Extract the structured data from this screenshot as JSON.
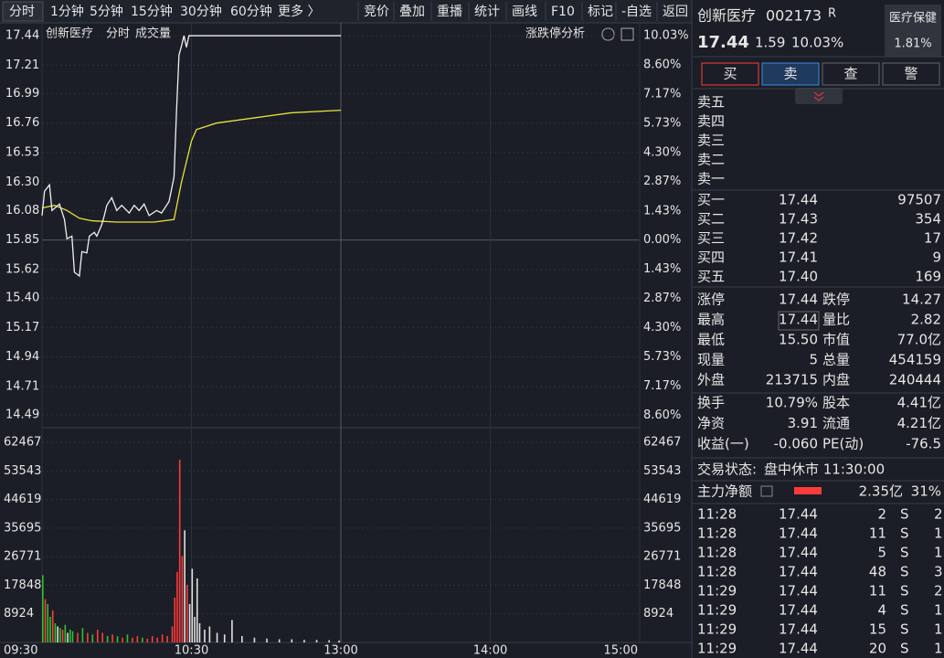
{
  "toolbar": {
    "period_tabs": [
      "分时",
      "1分钟",
      "5分钟",
      "15分钟",
      "30分钟",
      "60分钟",
      "更多 〉"
    ],
    "tools": [
      "竞价",
      "叠加",
      "重播",
      "统计",
      "画线",
      "F10",
      "标记",
      "-自选",
      "返回"
    ]
  },
  "chart_data": {
    "type": "intraday",
    "stock_label": "创新医疗",
    "mode_label": "分时",
    "volume_label": "成交量",
    "analysis_label": "涨跌停分析",
    "xlim": [
      0,
      240
    ],
    "xticks": [
      {
        "value": 0,
        "label": "09:30"
      },
      {
        "value": 60,
        "label": "10:30"
      },
      {
        "value": 120,
        "label": "13:00"
      },
      {
        "value": 180,
        "label": "14:00"
      },
      {
        "value": 240,
        "label": "15:00"
      }
    ],
    "ylim": [
      14.39,
      17.54
    ],
    "yticks": [
      17.44,
      17.21,
      16.99,
      16.76,
      16.53,
      {
        "value": 16.3,
        "label": "16.30"
      },
      16.08,
      15.85,
      15.62,
      {
        "value": 15.4,
        "label": "15.40"
      },
      15.17,
      14.94,
      14.71,
      14.49
    ],
    "y2lim": [
      -9.21,
      10.66
    ],
    "y2ticks": [
      {
        "value": 10.03,
        "label": "10.03%"
      },
      {
        "value": 8.6,
        "label": "8.60%"
      },
      {
        "value": 7.17,
        "label": "7.17%"
      },
      {
        "value": 5.73,
        "label": "5.73%"
      },
      {
        "value": 4.3,
        "label": "4.30%"
      },
      {
        "value": 2.87,
        "label": "2.87%"
      },
      {
        "value": 1.43,
        "label": "1.43%"
      },
      {
        "value": 0,
        "label": "0.00%"
      },
      {
        "value": -1.43,
        "label": "1.43%"
      },
      {
        "value": -2.87,
        "label": "2.87%"
      },
      {
        "value": -4.3,
        "label": "4.30%"
      },
      {
        "value": -5.73,
        "label": "5.73%"
      },
      {
        "value": -7.17,
        "label": "7.17%"
      },
      {
        "value": -8.6,
        "label": "8.60%"
      }
    ],
    "price": {
      "color": "#f0f0f0",
      "x": [
        0,
        1,
        3,
        4,
        7,
        9,
        10,
        12,
        13,
        15,
        16,
        18,
        19,
        21,
        22,
        24,
        25,
        26,
        28,
        30,
        32,
        35,
        37,
        39,
        41,
        43,
        46,
        48,
        50,
        51,
        53,
        54,
        55,
        56,
        57,
        58,
        59,
        120
      ],
      "values": [
        16.04,
        16.23,
        16.28,
        16.08,
        16.13,
        16.01,
        15.86,
        15.88,
        15.6,
        15.57,
        15.76,
        15.75,
        15.88,
        15.91,
        15.88,
        15.97,
        16.04,
        16.12,
        16.18,
        16.08,
        16.12,
        16.06,
        16.12,
        16.08,
        16.13,
        16.04,
        16.08,
        16.06,
        16.12,
        16.15,
        16.34,
        16.85,
        17.29,
        17.36,
        17.44,
        17.35,
        17.44,
        17.44
      ]
    },
    "average": {
      "color": "#e8e23a",
      "x": [
        0,
        5,
        10,
        15,
        20,
        30,
        45,
        53,
        56,
        60,
        62,
        70,
        85,
        100,
        120
      ],
      "values": [
        16.1,
        16.12,
        16.08,
        16.02,
        16.0,
        15.99,
        15.99,
        16.01,
        16.3,
        16.62,
        16.71,
        16.76,
        16.8,
        16.84,
        16.86
      ]
    },
    "volume": {
      "ylim": [
        0,
        66450
      ],
      "yticks": [
        62467,
        53543,
        44619,
        35695,
        26771,
        17848,
        8924
      ],
      "x": [
        0,
        1,
        2,
        3,
        4,
        5,
        6,
        7,
        8,
        9,
        10,
        11,
        12,
        14,
        16,
        18,
        20,
        22,
        24,
        26,
        28,
        30,
        32,
        34,
        36,
        38,
        40,
        42,
        44,
        46,
        48,
        50,
        52,
        53,
        54,
        55,
        56,
        57,
        58,
        59,
        60,
        61,
        62,
        63,
        65,
        67,
        70,
        73,
        76,
        80,
        85,
        90,
        95,
        100,
        105,
        110,
        115,
        119
      ],
      "values": [
        21000,
        13500,
        12000,
        8000,
        10000,
        6000,
        5000,
        4500,
        4000,
        5500,
        3000,
        4000,
        3500,
        3000,
        4500,
        3000,
        2500,
        4000,
        3000,
        2000,
        2500,
        2000,
        1500,
        2500,
        1500,
        2000,
        1500,
        1200,
        2000,
        1500,
        2500,
        2000,
        5000,
        14000,
        22000,
        57000,
        27000,
        35000,
        18000,
        12000,
        23000,
        8000,
        20000,
        6000,
        4000,
        5000,
        3000,
        2500,
        7000,
        2000,
        1500,
        1200,
        1000,
        1000,
        800,
        800,
        700,
        600
      ],
      "colors": [
        "#2fc12f",
        "#ff3b3b",
        "#2fc12f",
        "#2fc12f",
        "#ff3b3b",
        "#2fc12f",
        "#e0e0e0",
        "#2fc12f",
        "#ff3b3b",
        "#2fc12f",
        "#e0e0e0",
        "#2fc12f",
        "#2fc12f",
        "#ff3b3b",
        "#2fc12f",
        "#ff3b3b",
        "#2fc12f",
        "#ff3b3b",
        "#ff3b3b",
        "#2fc12f",
        "#ff3b3b",
        "#2fc12f",
        "#ff3b3b",
        "#2fc12f",
        "#ff3b3b",
        "#ff3b3b",
        "#2fc12f",
        "#ff3b3b",
        "#ff3b3b",
        "#ff3b3b",
        "#ff3b3b",
        "#ff3b3b",
        "#ff3b3b",
        "#ff3b3b",
        "#ff3b3b",
        "#ff3b3b",
        "#ff3b3b",
        "#e0e0e0",
        "#ff3b3b",
        "#e0e0e0",
        "#e0e0e0",
        "#e0e0e0",
        "#e0e0e0",
        "#e0e0e0",
        "#e0e0e0",
        "#e0e0e0",
        "#e0e0e0",
        "#e0e0e0",
        "#e0e0e0",
        "#e0e0e0",
        "#e0e0e0",
        "#e0e0e0",
        "#e0e0e0",
        "#e0e0e0",
        "#e0e0e0",
        "#e0e0e0",
        "#e0e0e0",
        "#e0e0e0"
      ]
    }
  },
  "quote": {
    "name": "创新医疗",
    "code": "002173",
    "flag": "R",
    "price": "17.44",
    "change": "1.59",
    "change_pct": "10.03%",
    "sector": "医疗保健",
    "sector_pct": "1.81%"
  },
  "buttons": [
    "买",
    "卖",
    "查",
    "警"
  ],
  "order_book": {
    "sell": [
      "卖五",
      "卖四",
      "卖三",
      "卖二",
      "卖一"
    ],
    "buy": [
      {
        "label": "买一",
        "price": "17.44",
        "volume": "97507"
      },
      {
        "label": "买二",
        "price": "17.43",
        "volume": "354"
      },
      {
        "label": "买三",
        "price": "17.42",
        "volume": "17"
      },
      {
        "label": "买四",
        "price": "17.41",
        "volume": "9"
      },
      {
        "label": "买五",
        "price": "17.40",
        "volume": "169"
      }
    ]
  },
  "stats": [
    [
      {
        "label": "涨停",
        "value": "17.44",
        "color": "red"
      },
      {
        "label": "跌停",
        "value": "14.27",
        "color": "green"
      }
    ],
    [
      {
        "label": "最高",
        "value": "17.44",
        "color": "red"
      },
      {
        "label": "量比",
        "value": "2.82",
        "color": "red"
      }
    ],
    [
      {
        "label": "最低",
        "value": "15.50",
        "color": "green"
      },
      {
        "label": "市值",
        "value": "77.0亿",
        "color": "white"
      }
    ],
    [
      {
        "label": "现量",
        "value": "5",
        "color": "green"
      },
      {
        "label": "总量",
        "value": "454159",
        "color": "white"
      }
    ],
    [
      {
        "label": "外盘",
        "value": "213715",
        "color": "red"
      },
      {
        "label": "内盘",
        "value": "240444",
        "color": "green"
      }
    ]
  ],
  "fundamentals": [
    [
      {
        "label": "换手",
        "value": "10.79%"
      },
      {
        "label": "股本",
        "value": "4.41亿"
      }
    ],
    [
      {
        "label": "净资",
        "value": "3.91"
      },
      {
        "label": "流通",
        "value": "4.21亿"
      }
    ],
    [
      {
        "label": "收益(一)",
        "value": "-0.060"
      },
      {
        "label": "PE(动)",
        "value": "-76.5"
      }
    ]
  ],
  "status": {
    "label": "交易状态:",
    "value": "盘中休市 11:30:00"
  },
  "main_flow": {
    "label": "主力净额",
    "value": "2.35亿",
    "pct": "31%"
  },
  "trades": [
    {
      "time": "11:28",
      "price": "17.44",
      "volume": "2",
      "side": "S",
      "count": "2"
    },
    {
      "time": "11:28",
      "price": "17.44",
      "volume": "11",
      "side": "S",
      "count": "1"
    },
    {
      "time": "11:28",
      "price": "17.44",
      "volume": "5",
      "side": "S",
      "count": "1"
    },
    {
      "time": "11:28",
      "price": "17.44",
      "volume": "48",
      "side": "S",
      "count": "3"
    },
    {
      "time": "11:29",
      "price": "17.44",
      "volume": "11",
      "side": "S",
      "count": "2"
    },
    {
      "time": "11:29",
      "price": "17.44",
      "volume": "4",
      "side": "S",
      "count": "1"
    },
    {
      "time": "11:29",
      "price": "17.44",
      "volume": "15",
      "side": "S",
      "count": "1"
    },
    {
      "time": "11:29",
      "price": "17.44",
      "volume": "20",
      "side": "S",
      "count": "1"
    }
  ]
}
